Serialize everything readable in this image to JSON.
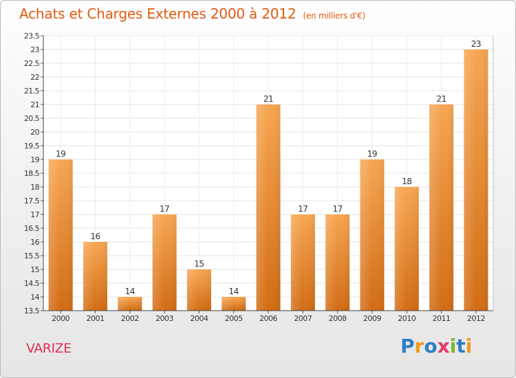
{
  "title": "Achats et Charges Externes 2000 à 2012",
  "unit": "(en milliers d'€)",
  "commune": "VARIZE",
  "logo": "Proxiti",
  "colors": {
    "title": "#e35a12",
    "bar_light": "#f7a652",
    "bar_dark": "#d26c14",
    "commune": "#dc2f54",
    "logo": [
      "#2d7fc4",
      "#f09a1a",
      "#2d7fc4",
      "#e53a6e",
      "#7cb82f",
      "#2d7fc4",
      "#f09a1a"
    ]
  },
  "chart_data": {
    "type": "bar",
    "title": "Achats et Charges Externes 2000 à 2012",
    "subtitle": "(en milliers d'€)",
    "categories": [
      "2000",
      "2001",
      "2002",
      "2003",
      "2004",
      "2005",
      "2006",
      "2007",
      "2008",
      "2009",
      "2010",
      "2011",
      "2012"
    ],
    "values": [
      19,
      16,
      14,
      17,
      15,
      14,
      21,
      17,
      17,
      19,
      18,
      21,
      23
    ],
    "ylim": [
      13.5,
      23.5
    ],
    "yticks": [
      13.5,
      14,
      14.5,
      15,
      15.5,
      16,
      16.5,
      17,
      17.5,
      18,
      18.5,
      19,
      19.5,
      20,
      20.5,
      21,
      21.5,
      22,
      22.5,
      23,
      23.5
    ],
    "ytick_labels": [
      "13.5",
      "14",
      "14.5",
      "15",
      "15.5",
      "16",
      "16.5",
      "17",
      "17.5",
      "18",
      "18.5",
      "19",
      "19.5",
      "20",
      "20.5",
      "21",
      "21.5",
      "22",
      "22.5",
      "23",
      "23.5"
    ],
    "grid": true,
    "data_labels": true
  }
}
